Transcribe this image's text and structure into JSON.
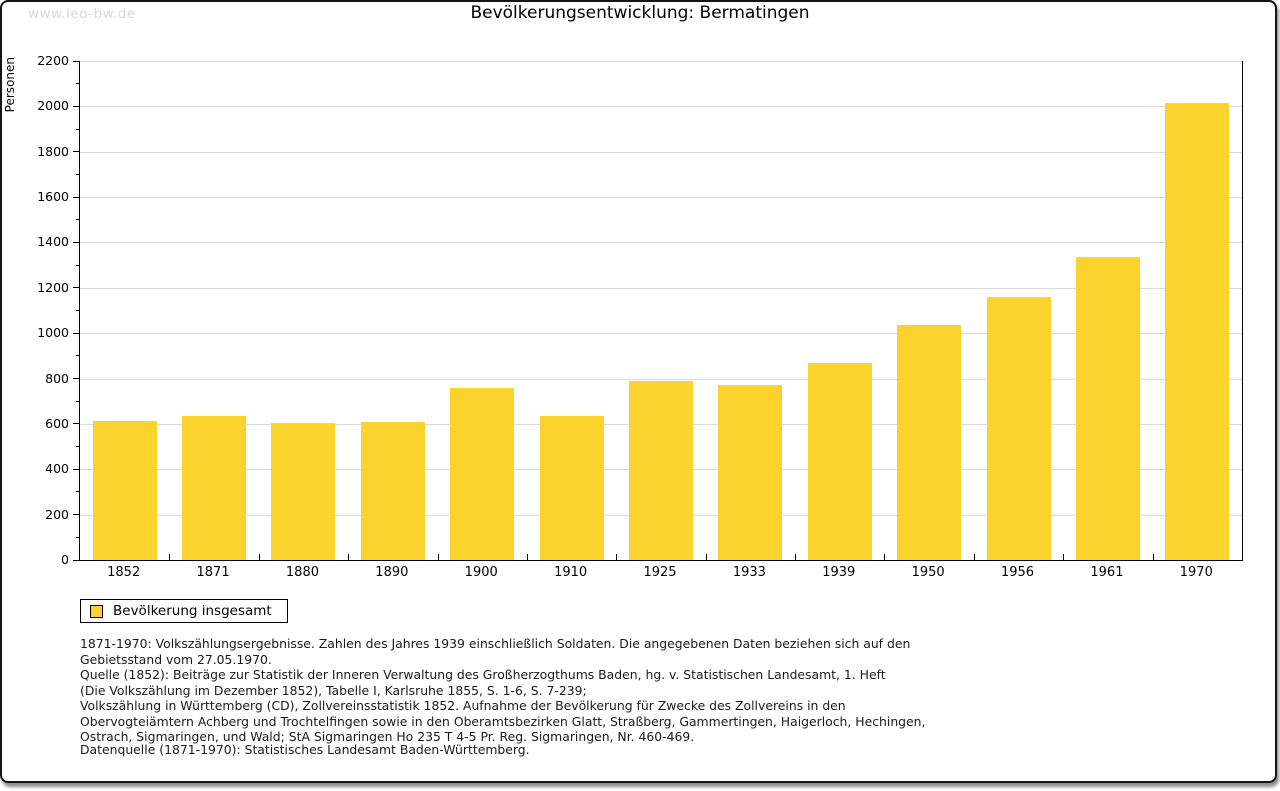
{
  "watermark": "www.leo-bw.de",
  "title": "Bevölkerungsentwicklung: Bermatingen",
  "y_axis_label": "Personen",
  "legend": {
    "label": "Bevölkerung insgesamt"
  },
  "colors": {
    "bar": "#fcd32c",
    "grid": "#dcdcdc",
    "watermark": "#d8d8d8",
    "frame": "#141414"
  },
  "chart_data": {
    "type": "bar",
    "title": "Bevölkerungsentwicklung: Bermatingen",
    "xlabel": "",
    "ylabel": "Personen",
    "categories": [
      "1852",
      "1871",
      "1880",
      "1890",
      "1900",
      "1910",
      "1925",
      "1933",
      "1939",
      "1950",
      "1956",
      "1961",
      "1970"
    ],
    "series": [
      {
        "name": "Bevölkerung insgesamt",
        "values": [
          615,
          636,
          604,
          610,
          758,
          637,
          788,
          771,
          870,
          1036,
          1158,
          1336,
          2013
        ]
      }
    ],
    "ylim": [
      0,
      2200
    ],
    "y_tick_step": 200,
    "y_minor_step": 100,
    "grid": true,
    "legend_position": "bottom-left",
    "bar_color": "#fcd32c"
  },
  "footnotes": [
    "1871-1970: Volkszählungsergebnisse. Zahlen des Jahres 1939 einschließlich Soldaten. Die angegebenen Daten beziehen sich auf den",
    "Gebietsstand vom 27.05.1970.",
    "Quelle (1852): Beiträge zur Statistik der Inneren Verwaltung des Großherzogthums Baden, hg. v. Statistischen Landesamt, 1. Heft",
    "(Die Volkszählung im Dezember 1852), Tabelle I, Karlsruhe 1855, S. 1-6, S. 7-239;",
    "Volkszählung in Württemberg (CD), Zollvereinsstatistik 1852. Aufnahme der Bevölkerung für Zwecke des Zollvereins in den",
    "Obervogteiämtern Achberg und Trochtelfingen sowie in den Oberamtsbezirken Glatt, Straßberg, Gammertingen, Haigerloch, Hechingen,",
    "Ostrach, Sigmaringen, und Wald; StA Sigmaringen Ho 235 T 4-5 Pr. Reg. Sigmaringen, Nr. 460-469."
  ],
  "datasource": "Datenquelle (1871-1970): Statistisches Landesamt Baden-Württemberg."
}
